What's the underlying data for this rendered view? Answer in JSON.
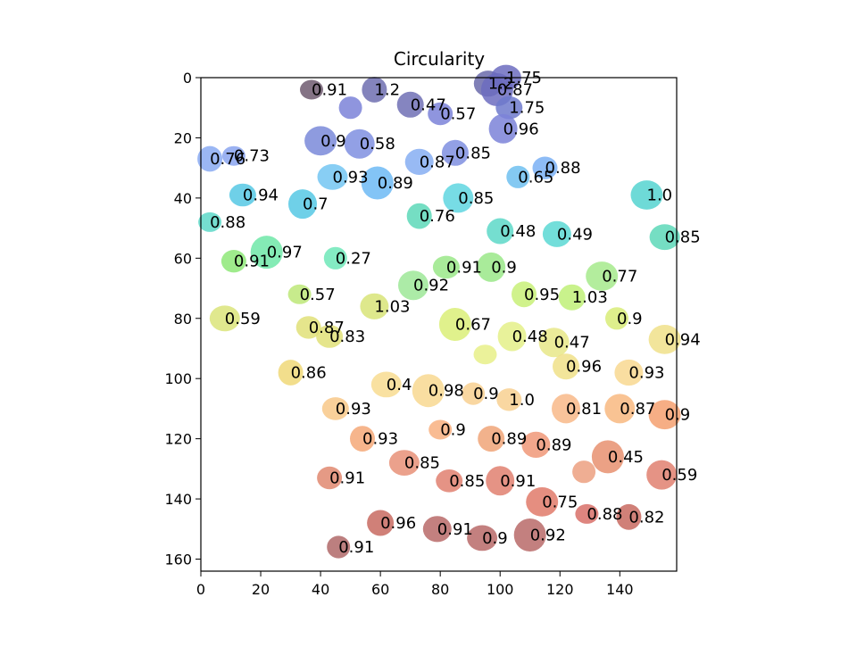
{
  "chart_data": {
    "type": "scatter",
    "title": "Circularity",
    "xlabel": "",
    "ylabel": "",
    "xlim": [
      0,
      159
    ],
    "ylim": [
      164,
      0
    ],
    "x_ticks": [
      "0",
      "20",
      "40",
      "60",
      "80",
      "100",
      "120",
      "140"
    ],
    "y_ticks": [
      "0",
      "20",
      "40",
      "60",
      "80",
      "100",
      "120",
      "140",
      "160"
    ],
    "grid": false,
    "legend": "none",
    "colormap": "jet",
    "points": [
      {
        "x": 37,
        "y": 4,
        "value": "0.91",
        "color": "#6f5a70"
      },
      {
        "x": 58,
        "y": 4,
        "value": "1.2",
        "color": "#6f6fb0"
      },
      {
        "x": 70,
        "y": 9,
        "value": "0.47",
        "color": "#7070b5"
      },
      {
        "x": 96,
        "y": 2,
        "value": "1.2",
        "color": "#6a6aaa"
      },
      {
        "x": 102,
        "y": 0,
        "value": "1.75",
        "color": "#6c6cc0"
      },
      {
        "x": 99,
        "y": 4,
        "value": "0.87",
        "color": "#6c6cc0"
      },
      {
        "x": 50,
        "y": 10,
        "value": "",
        "color": "#7b82d8"
      },
      {
        "x": 80,
        "y": 12,
        "value": "0.57",
        "color": "#7b82d8"
      },
      {
        "x": 103,
        "y": 10,
        "value": "1.75",
        "color": "#6f7acc"
      },
      {
        "x": 101,
        "y": 17,
        "value": "0.96",
        "color": "#7b82d8"
      },
      {
        "x": 53,
        "y": 22,
        "value": "0.58",
        "color": "#7f8fe0"
      },
      {
        "x": 40,
        "y": 21,
        "value": "0.9",
        "color": "#7a8ad9"
      },
      {
        "x": 11,
        "y": 26,
        "value": "0.73",
        "color": "#8aa4f0"
      },
      {
        "x": 3,
        "y": 27,
        "value": "0.76",
        "color": "#8aaaf2"
      },
      {
        "x": 85,
        "y": 25,
        "value": "0.85",
        "color": "#7f8fe0"
      },
      {
        "x": 73,
        "y": 28,
        "value": "0.87",
        "color": "#86aef2"
      },
      {
        "x": 44,
        "y": 33,
        "value": "0.93",
        "color": "#73c6f2"
      },
      {
        "x": 59,
        "y": 35,
        "value": "0.89",
        "color": "#6dbaf5"
      },
      {
        "x": 106,
        "y": 33,
        "value": "0.65",
        "color": "#6fc0f0"
      },
      {
        "x": 115,
        "y": 30,
        "value": "0.88",
        "color": "#7ab0f5"
      },
      {
        "x": 14,
        "y": 39,
        "value": "0.94",
        "color": "#56c8e4"
      },
      {
        "x": 34,
        "y": 42,
        "value": "0.7",
        "color": "#56c8e4"
      },
      {
        "x": 86,
        "y": 40,
        "value": "0.85",
        "color": "#5fd6e0"
      },
      {
        "x": 149,
        "y": 39,
        "value": "1.0",
        "color": "#55d4d0"
      },
      {
        "x": 3,
        "y": 48,
        "value": "0.88",
        "color": "#5dd8c8"
      },
      {
        "x": 73,
        "y": 46,
        "value": "0.76",
        "color": "#5dd8b8"
      },
      {
        "x": 100,
        "y": 51,
        "value": "0.48",
        "color": "#5dd8c8"
      },
      {
        "x": 119,
        "y": 52,
        "value": "0.49",
        "color": "#5ad8d4"
      },
      {
        "x": 155,
        "y": 53,
        "value": "0.85",
        "color": "#5dd8b8"
      },
      {
        "x": 22,
        "y": 58,
        "value": "0.97",
        "color": "#6fe8a8"
      },
      {
        "x": 45,
        "y": 60,
        "value": "0.27",
        "color": "#6fe8b8"
      },
      {
        "x": 11,
        "y": 61,
        "value": "0.91",
        "color": "#8ee878"
      },
      {
        "x": 82,
        "y": 63,
        "value": "0.91",
        "color": "#9ae888"
      },
      {
        "x": 97,
        "y": 63,
        "value": "0.9",
        "color": "#9ae888"
      },
      {
        "x": 71,
        "y": 69,
        "value": "0.92",
        "color": "#9ee898"
      },
      {
        "x": 134,
        "y": 66,
        "value": "0.77",
        "color": "#a6ea8c"
      },
      {
        "x": 33,
        "y": 72,
        "value": "0.57",
        "color": "#bde878"
      },
      {
        "x": 108,
        "y": 72,
        "value": "0.95",
        "color": "#c8f078"
      },
      {
        "x": 124,
        "y": 73,
        "value": "1.03",
        "color": "#c0f078"
      },
      {
        "x": 58,
        "y": 76,
        "value": "1.03",
        "color": "#d8e478"
      },
      {
        "x": 8,
        "y": 80,
        "value": "0.59",
        "color": "#dbe47a"
      },
      {
        "x": 85,
        "y": 82,
        "value": "0.67",
        "color": "#dbef78"
      },
      {
        "x": 139,
        "y": 80,
        "value": "0.9",
        "color": "#d8ec78"
      },
      {
        "x": 36,
        "y": 83,
        "value": "0.87",
        "color": "#e0e078"
      },
      {
        "x": 43,
        "y": 86,
        "value": "0.83",
        "color": "#e0e078"
      },
      {
        "x": 104,
        "y": 86,
        "value": "0.48",
        "color": "#e4f088"
      },
      {
        "x": 118,
        "y": 88,
        "value": "0.47",
        "color": "#e8e888"
      },
      {
        "x": 155,
        "y": 87,
        "value": "0.94",
        "color": "#f0e08a"
      },
      {
        "x": 95,
        "y": 92,
        "value": "",
        "color": "#e8f088"
      },
      {
        "x": 30,
        "y": 98,
        "value": "0.86",
        "color": "#f0d878"
      },
      {
        "x": 122,
        "y": 96,
        "value": "0.96",
        "color": "#f0e088"
      },
      {
        "x": 143,
        "y": 98,
        "value": "0.93",
        "color": "#f8d890"
      },
      {
        "x": 62,
        "y": 102,
        "value": "0.4",
        "color": "#f8dc90"
      },
      {
        "x": 76,
        "y": 104,
        "value": "0.98",
        "color": "#f8d890"
      },
      {
        "x": 91,
        "y": 105,
        "value": "0.9",
        "color": "#f8d090"
      },
      {
        "x": 103,
        "y": 107,
        "value": "1.0",
        "color": "#f8d090"
      },
      {
        "x": 45,
        "y": 110,
        "value": "0.93",
        "color": "#f8c888"
      },
      {
        "x": 122,
        "y": 110,
        "value": "0.81",
        "color": "#f8b888"
      },
      {
        "x": 140,
        "y": 110,
        "value": "0.87",
        "color": "#f8b880"
      },
      {
        "x": 155,
        "y": 112,
        "value": "0.9",
        "color": "#f4a070"
      },
      {
        "x": 80,
        "y": 117,
        "value": "0.9",
        "color": "#f8b080"
      },
      {
        "x": 54,
        "y": 120,
        "value": "0.93",
        "color": "#f4a878"
      },
      {
        "x": 97,
        "y": 120,
        "value": "0.89",
        "color": "#f0a478"
      },
      {
        "x": 112,
        "y": 122,
        "value": "0.89",
        "color": "#f09878"
      },
      {
        "x": 68,
        "y": 128,
        "value": "0.85",
        "color": "#e89078"
      },
      {
        "x": 136,
        "y": 126,
        "value": "0.45",
        "color": "#e89070"
      },
      {
        "x": 128,
        "y": 131,
        "value": "",
        "color": "#eca080"
      },
      {
        "x": 43,
        "y": 133,
        "value": "0.91",
        "color": "#e08870"
      },
      {
        "x": 83,
        "y": 134,
        "value": "0.85",
        "color": "#e08070"
      },
      {
        "x": 100,
        "y": 134,
        "value": "0.91",
        "color": "#e08070"
      },
      {
        "x": 154,
        "y": 132,
        "value": "0.59",
        "color": "#e08070"
      },
      {
        "x": 114,
        "y": 141,
        "value": "0.75",
        "color": "#e07a6a"
      },
      {
        "x": 129,
        "y": 145,
        "value": "0.88",
        "color": "#d87068"
      },
      {
        "x": 143,
        "y": 146,
        "value": "0.82",
        "color": "#c86a60"
      },
      {
        "x": 60,
        "y": 148,
        "value": "0.96",
        "color": "#c86a60"
      },
      {
        "x": 79,
        "y": 150,
        "value": "0.91",
        "color": "#b86a68"
      },
      {
        "x": 94,
        "y": 153,
        "value": "0.9",
        "color": "#b86a68"
      },
      {
        "x": 110,
        "y": 152,
        "value": "0.92",
        "color": "#b86a68"
      },
      {
        "x": 46,
        "y": 156,
        "value": "0.91",
        "color": "#b06868"
      }
    ]
  }
}
